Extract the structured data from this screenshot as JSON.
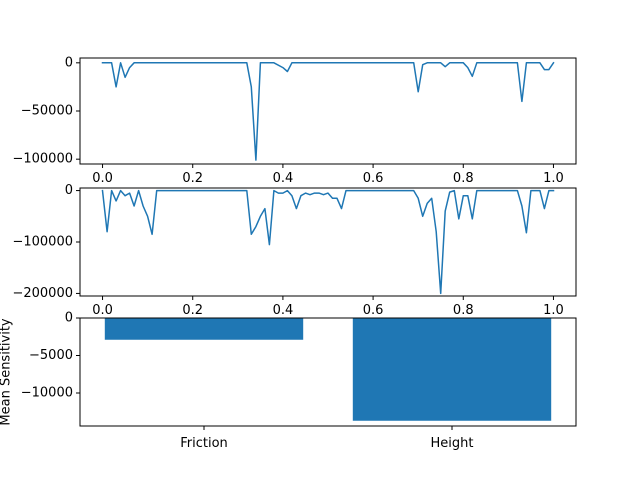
{
  "figure": {
    "line_color": "#1f77b4",
    "bar_color": "#1f77b4"
  },
  "chart_data": [
    {
      "type": "line",
      "title": "",
      "xlabel": "",
      "ylabel": "",
      "xlim": [
        -0.05,
        1.05
      ],
      "ylim": [
        -105000,
        5000
      ],
      "xticks": [
        0.0,
        0.2,
        0.4,
        0.6,
        0.8,
        1.0
      ],
      "xtick_labels": [
        "0.0",
        "0.2",
        "0.4",
        "0.6",
        "0.8",
        "1.0"
      ],
      "yticks": [
        0,
        -50000,
        -100000
      ],
      "ytick_labels": [
        "0",
        "−50000",
        "−100000"
      ],
      "grid": false,
      "series": [
        {
          "x": [
            0.0,
            0.01,
            0.02,
            0.03,
            0.04,
            0.05,
            0.06,
            0.07,
            0.08,
            0.1,
            0.15,
            0.2,
            0.25,
            0.3,
            0.32,
            0.33,
            0.34,
            0.35,
            0.36,
            0.38,
            0.4,
            0.41,
            0.42,
            0.45,
            0.5,
            0.55,
            0.6,
            0.65,
            0.69,
            0.7,
            0.71,
            0.72,
            0.73,
            0.75,
            0.76,
            0.77,
            0.78,
            0.8,
            0.81,
            0.82,
            0.83,
            0.84,
            0.85,
            0.88,
            0.9,
            0.92,
            0.93,
            0.94,
            0.95,
            0.97,
            0.98,
            0.99,
            1.0
          ],
          "y": [
            0,
            0,
            0,
            -25000,
            0,
            -15000,
            -5000,
            0,
            0,
            0,
            0,
            0,
            0,
            0,
            0,
            -25000,
            -101000,
            0,
            0,
            0,
            -5000,
            -9000,
            0,
            0,
            0,
            0,
            0,
            0,
            0,
            -30000,
            -2000,
            0,
            0,
            0,
            -4000,
            0,
            0,
            0,
            -5000,
            -14000,
            0,
            0,
            0,
            0,
            0,
            0,
            -40000,
            0,
            0,
            0,
            -7000,
            -7000,
            0
          ]
        }
      ]
    },
    {
      "type": "line",
      "title": "",
      "xlabel": "",
      "ylabel": "",
      "xlim": [
        -0.05,
        1.05
      ],
      "ylim": [
        -205000,
        5000
      ],
      "xticks": [
        0.0,
        0.2,
        0.4,
        0.6,
        0.8,
        1.0
      ],
      "xtick_labels": [
        "0.0",
        "0.2",
        "0.4",
        "0.6",
        "0.8",
        "1.0"
      ],
      "yticks": [
        0,
        -100000,
        -200000
      ],
      "ytick_labels": [
        "0",
        "−100000",
        "−200000"
      ],
      "grid": false,
      "series": [
        {
          "x": [
            0.0,
            0.01,
            0.02,
            0.03,
            0.04,
            0.05,
            0.06,
            0.07,
            0.08,
            0.09,
            0.1,
            0.11,
            0.12,
            0.15,
            0.2,
            0.25,
            0.3,
            0.32,
            0.33,
            0.34,
            0.35,
            0.36,
            0.37,
            0.38,
            0.39,
            0.4,
            0.41,
            0.42,
            0.43,
            0.44,
            0.45,
            0.46,
            0.47,
            0.48,
            0.49,
            0.5,
            0.51,
            0.52,
            0.53,
            0.54,
            0.55,
            0.56,
            0.57,
            0.6,
            0.65,
            0.69,
            0.7,
            0.71,
            0.72,
            0.73,
            0.74,
            0.75,
            0.76,
            0.77,
            0.78,
            0.79,
            0.8,
            0.81,
            0.82,
            0.83,
            0.84,
            0.85,
            0.88,
            0.9,
            0.92,
            0.93,
            0.94,
            0.95,
            0.96,
            0.97,
            0.98,
            0.99,
            1.0
          ],
          "y": [
            0,
            -80000,
            0,
            -20000,
            0,
            -10000,
            -5000,
            -30000,
            0,
            -30000,
            -50000,
            -85000,
            0,
            0,
            0,
            0,
            0,
            0,
            -85000,
            -70000,
            -50000,
            -35000,
            -105000,
            0,
            -5000,
            -5000,
            0,
            -10000,
            -35000,
            -10000,
            -5000,
            -8000,
            -5000,
            -5000,
            -8000,
            -5000,
            -15000,
            -15000,
            -35000,
            0,
            0,
            0,
            0,
            0,
            0,
            0,
            -15000,
            -50000,
            -25000,
            -15000,
            -80000,
            -200000,
            -40000,
            -3000,
            0,
            -55000,
            -10000,
            -10000,
            -55000,
            0,
            0,
            0,
            0,
            0,
            0,
            -30000,
            -82000,
            0,
            0,
            0,
            -35000,
            0,
            0
          ]
        }
      ]
    },
    {
      "type": "bar",
      "title": "",
      "xlabel": "",
      "ylabel": "Mean Sensitivity",
      "categories": [
        "Friction",
        "Height"
      ],
      "values": [
        -2900,
        -13700
      ],
      "ylim": [
        -14400,
        0
      ],
      "yticks": [
        0,
        -5000,
        -10000
      ],
      "ytick_labels": [
        "0",
        "−5000",
        "−10000"
      ],
      "grid": false
    }
  ]
}
